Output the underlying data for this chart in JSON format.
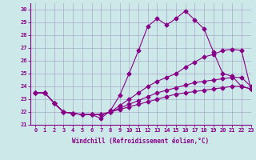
{
  "background_color": "#cce8e8",
  "grid_color": "#aaaacc",
  "line_color": "#880088",
  "xlim": [
    -0.5,
    23
  ],
  "ylim": [
    21,
    30.5
  ],
  "yticks": [
    21,
    22,
    23,
    24,
    25,
    26,
    27,
    28,
    29,
    30
  ],
  "xticks": [
    0,
    1,
    2,
    3,
    4,
    5,
    6,
    7,
    8,
    9,
    10,
    11,
    12,
    13,
    14,
    15,
    16,
    17,
    18,
    19,
    20,
    21,
    22,
    23
  ],
  "xlabel": "Windchill (Refroidissement éolien,°C)",
  "line1_x": [
    0,
    1,
    2,
    3,
    4,
    5,
    6,
    7,
    8,
    9,
    10,
    11,
    12,
    13,
    14,
    15,
    16,
    17,
    18,
    19,
    20,
    21,
    22,
    23
  ],
  "line1_y": [
    23.5,
    23.5,
    22.7,
    22.0,
    21.9,
    21.8,
    21.8,
    21.5,
    22.1,
    23.3,
    25.0,
    26.8,
    28.7,
    29.3,
    28.8,
    29.3,
    29.9,
    29.2,
    28.5,
    26.7,
    25.0,
    24.8,
    24.0,
    23.8
  ],
  "line2_x": [
    0,
    1,
    2,
    3,
    4,
    5,
    6,
    7,
    8,
    9,
    10,
    11,
    12,
    13,
    14,
    15,
    16,
    17,
    18,
    19,
    20,
    21,
    22,
    23
  ],
  "line2_y": [
    23.5,
    23.5,
    22.7,
    22.0,
    21.9,
    21.8,
    21.8,
    21.8,
    22.0,
    22.5,
    23.0,
    23.5,
    24.0,
    24.4,
    24.7,
    25.0,
    25.5,
    25.9,
    26.3,
    26.5,
    26.8,
    26.9,
    26.8,
    23.8
  ],
  "line3_x": [
    0,
    1,
    2,
    3,
    4,
    5,
    6,
    7,
    8,
    9,
    10,
    11,
    12,
    13,
    14,
    15,
    16,
    17,
    18,
    19,
    20,
    21,
    22,
    23
  ],
  "line3_y": [
    23.5,
    23.5,
    22.7,
    22.0,
    21.9,
    21.8,
    21.8,
    21.8,
    22.0,
    22.3,
    22.6,
    22.9,
    23.2,
    23.5,
    23.7,
    23.9,
    24.1,
    24.3,
    24.4,
    24.5,
    24.6,
    24.7,
    24.7,
    24.0
  ],
  "line4_x": [
    0,
    1,
    2,
    3,
    4,
    5,
    6,
    7,
    8,
    9,
    10,
    11,
    12,
    13,
    14,
    15,
    16,
    17,
    18,
    19,
    20,
    21,
    22,
    23
  ],
  "line4_y": [
    23.5,
    23.5,
    22.7,
    22.0,
    21.9,
    21.8,
    21.8,
    21.8,
    22.0,
    22.2,
    22.4,
    22.6,
    22.8,
    23.0,
    23.2,
    23.4,
    23.5,
    23.6,
    23.7,
    23.8,
    23.9,
    24.0,
    24.0,
    23.8
  ],
  "marker": "D",
  "markersize": 2.5,
  "linewidth": 0.8,
  "xlabel_fontsize": 5.5,
  "tick_fontsize": 5.0
}
